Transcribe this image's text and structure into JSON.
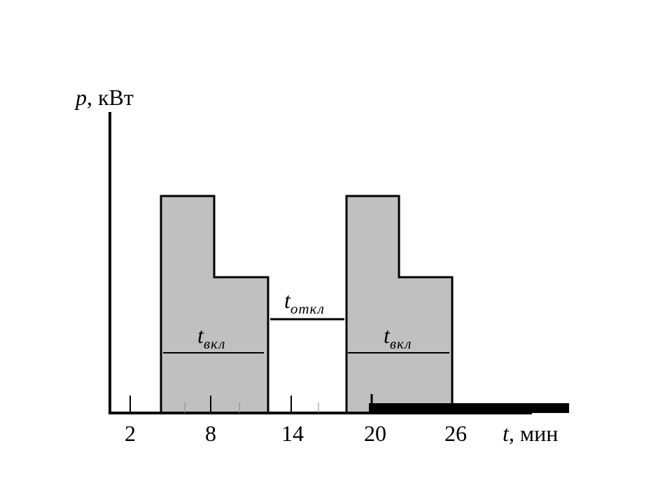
{
  "y_axis": {
    "symbol": "p",
    "unit": ", кВт"
  },
  "x_axis": {
    "symbol": "t",
    "unit": ", мин",
    "ticks": [
      "2",
      "8",
      "14",
      "20",
      "26"
    ]
  },
  "annotations": [
    {
      "symbol": "t",
      "subscript": "вкл"
    },
    {
      "symbol": "t",
      "subscript": "откл"
    },
    {
      "symbol": "t",
      "subscript": "вкл"
    }
  ]
}
